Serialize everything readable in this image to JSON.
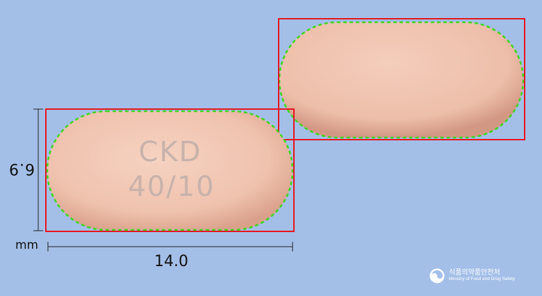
{
  "image": {
    "subject": "pill-photo",
    "background_color": "#a3bfe8",
    "pill_color": "#f2c8b6",
    "bbox_color": "#e8141b",
    "contour_color": "#3fd51e"
  },
  "pill_front": {
    "imprint_line1": "CKD",
    "imprint_line2": "40/10"
  },
  "dimensions": {
    "height_value": "6.9",
    "width_value": "14.0",
    "unit": "mm"
  },
  "logo": {
    "icon": "mfds-emblem-icon",
    "korean_name": "식품의약품안전처",
    "english_name": "Ministry of Food and Drug Safety"
  }
}
